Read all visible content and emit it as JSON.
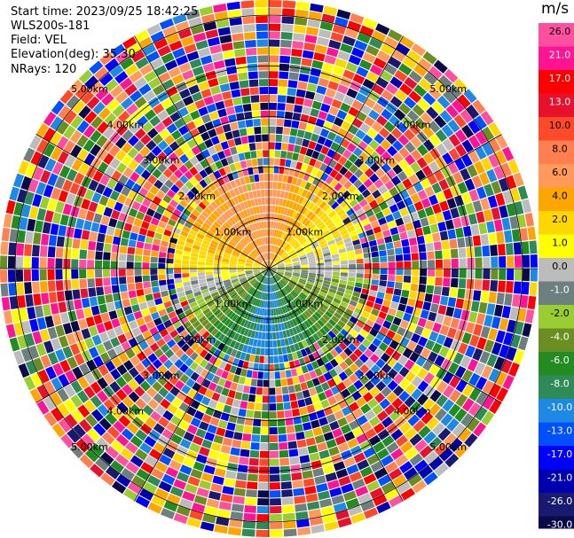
{
  "header": {
    "start_time": "Start time: 2023/09/25 18:42:25",
    "instrument": "WLS200s-181",
    "field": "Field: VEL",
    "elevation": "Elevation(deg): 35.30",
    "nrays": "NRays: 120"
  },
  "colorbar": {
    "unit": "m/s",
    "ticks": [
      "26.0",
      "21.0",
      "17.0",
      "13.0",
      "10.0",
      "8.0",
      "6.0",
      "4.0",
      "2.0",
      "1.0",
      "0.0",
      "-1.0",
      "-2.0",
      "-4.0",
      "-6.0",
      "-8.0",
      "-10.0",
      "-13.0",
      "-17.0",
      "-21.0",
      "-26.0",
      "-30.0"
    ],
    "colors": [
      "#ff4fa0",
      "#ff1493",
      "#ff0000",
      "#e8112d",
      "#ff4a2a",
      "#ff7f50",
      "#ff9a5a",
      "#ffa500",
      "#ffd700",
      "#ffff00",
      "#bcbcbc",
      "#6e7f80",
      "#9acd32",
      "#6b8e23",
      "#228b22",
      "#2e8b57",
      "#1e88e5",
      "#0050ff",
      "#0000ff",
      "#0000b0",
      "#191970",
      "#0a0a4a"
    ]
  },
  "chart_data": {
    "type": "ppi",
    "field": "VEL",
    "units": "m/s",
    "nrays": 120,
    "elevation_deg": 35.3,
    "range_rings": [
      {
        "km": 1.0,
        "label": "1.00km"
      },
      {
        "km": 2.0,
        "label": "2.00km"
      },
      {
        "km": 3.0,
        "label": "3.00km"
      },
      {
        "km": 4.0,
        "label": "4.00km"
      },
      {
        "km": 5.0,
        "label": "5.00km"
      }
    ],
    "max_range_km": 5.3,
    "spokes_deg": [
      0,
      30,
      60,
      90,
      120,
      150,
      180,
      210,
      240,
      270,
      300,
      330
    ],
    "valid_range_km": 1.9,
    "approx_velocity_pattern": [
      {
        "azimuth_deg": 0,
        "velocity": 7.0
      },
      {
        "azimuth_deg": 45,
        "velocity": 3.0
      },
      {
        "azimuth_deg": 90,
        "velocity": 0.0
      },
      {
        "azimuth_deg": 135,
        "velocity": -4.0
      },
      {
        "azimuth_deg": 180,
        "velocity": -9.0
      },
      {
        "azimuth_deg": 225,
        "velocity": -4.0
      },
      {
        "azimuth_deg": 270,
        "velocity": 2.0
      },
      {
        "azimuth_deg": 315,
        "velocity": 6.0
      }
    ]
  }
}
